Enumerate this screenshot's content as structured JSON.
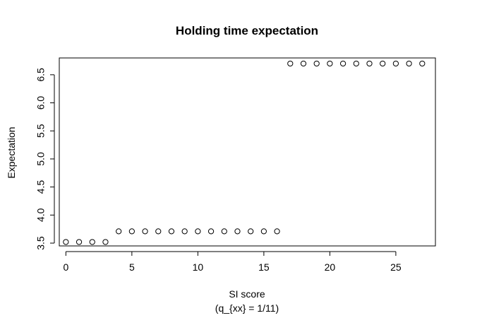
{
  "chart_data": {
    "type": "scatter",
    "title": "Holding time expectation",
    "xlabel": "SI score",
    "xlabel_sub": "(q_{xx} = 1/11)",
    "ylabel": "Expectation",
    "xlim": [
      -0.5,
      28.0
    ],
    "ylim": [
      3.45,
      6.8
    ],
    "x_ticks": [
      0,
      5,
      10,
      15,
      20,
      25
    ],
    "x_tick_labels": [
      "0",
      "5",
      "10",
      "15",
      "20",
      "25"
    ],
    "y_ticks": [
      3.5,
      4.0,
      4.5,
      5.0,
      5.5,
      6.0,
      6.5
    ],
    "y_tick_labels": [
      "3.5",
      "4.0",
      "4.5",
      "5.0",
      "5.5",
      "6.0",
      "6.5"
    ],
    "marker": "open-circle",
    "grid": false,
    "series": [
      {
        "x": [
          0,
          1,
          2,
          3,
          4,
          5,
          6,
          7,
          8,
          9,
          10,
          11,
          12,
          13,
          14,
          15,
          16,
          17,
          18,
          19,
          20,
          21,
          22,
          23,
          24,
          25,
          26,
          27
        ],
        "y": [
          3.52,
          3.52,
          3.52,
          3.52,
          3.71,
          3.71,
          3.71,
          3.71,
          3.71,
          3.71,
          3.71,
          3.71,
          3.71,
          3.71,
          3.71,
          3.71,
          3.71,
          6.7,
          6.7,
          6.7,
          6.7,
          6.7,
          6.7,
          6.7,
          6.7,
          6.7,
          6.7,
          6.7
        ]
      }
    ]
  }
}
